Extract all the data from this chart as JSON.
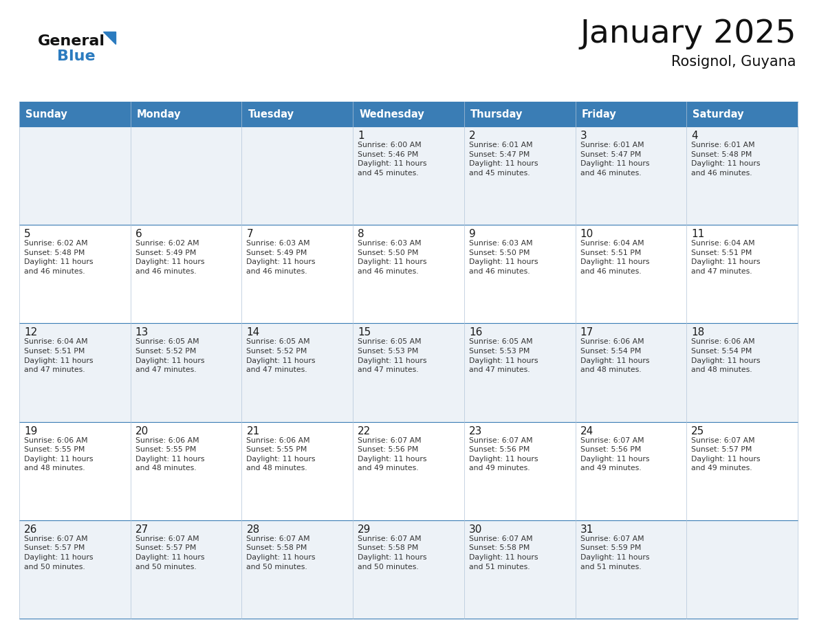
{
  "title": "January 2025",
  "subtitle": "Rosignol, Guyana",
  "header_color": "#3a7db5",
  "header_text_color": "#ffffff",
  "cell_bg_odd": "#edf2f7",
  "cell_bg_even": "#ffffff",
  "border_color": "#3a7db5",
  "cell_border_color": "#b0c4d8",
  "text_color": "#333333",
  "day_number_color": "#1a1a1a",
  "days_of_week": [
    "Sunday",
    "Monday",
    "Tuesday",
    "Wednesday",
    "Thursday",
    "Friday",
    "Saturday"
  ],
  "weeks": [
    [
      {
        "day": "",
        "info": ""
      },
      {
        "day": "",
        "info": ""
      },
      {
        "day": "",
        "info": ""
      },
      {
        "day": "1",
        "info": "Sunrise: 6:00 AM\nSunset: 5:46 PM\nDaylight: 11 hours\nand 45 minutes."
      },
      {
        "day": "2",
        "info": "Sunrise: 6:01 AM\nSunset: 5:47 PM\nDaylight: 11 hours\nand 45 minutes."
      },
      {
        "day": "3",
        "info": "Sunrise: 6:01 AM\nSunset: 5:47 PM\nDaylight: 11 hours\nand 46 minutes."
      },
      {
        "day": "4",
        "info": "Sunrise: 6:01 AM\nSunset: 5:48 PM\nDaylight: 11 hours\nand 46 minutes."
      }
    ],
    [
      {
        "day": "5",
        "info": "Sunrise: 6:02 AM\nSunset: 5:48 PM\nDaylight: 11 hours\nand 46 minutes."
      },
      {
        "day": "6",
        "info": "Sunrise: 6:02 AM\nSunset: 5:49 PM\nDaylight: 11 hours\nand 46 minutes."
      },
      {
        "day": "7",
        "info": "Sunrise: 6:03 AM\nSunset: 5:49 PM\nDaylight: 11 hours\nand 46 minutes."
      },
      {
        "day": "8",
        "info": "Sunrise: 6:03 AM\nSunset: 5:50 PM\nDaylight: 11 hours\nand 46 minutes."
      },
      {
        "day": "9",
        "info": "Sunrise: 6:03 AM\nSunset: 5:50 PM\nDaylight: 11 hours\nand 46 minutes."
      },
      {
        "day": "10",
        "info": "Sunrise: 6:04 AM\nSunset: 5:51 PM\nDaylight: 11 hours\nand 46 minutes."
      },
      {
        "day": "11",
        "info": "Sunrise: 6:04 AM\nSunset: 5:51 PM\nDaylight: 11 hours\nand 47 minutes."
      }
    ],
    [
      {
        "day": "12",
        "info": "Sunrise: 6:04 AM\nSunset: 5:51 PM\nDaylight: 11 hours\nand 47 minutes."
      },
      {
        "day": "13",
        "info": "Sunrise: 6:05 AM\nSunset: 5:52 PM\nDaylight: 11 hours\nand 47 minutes."
      },
      {
        "day": "14",
        "info": "Sunrise: 6:05 AM\nSunset: 5:52 PM\nDaylight: 11 hours\nand 47 minutes."
      },
      {
        "day": "15",
        "info": "Sunrise: 6:05 AM\nSunset: 5:53 PM\nDaylight: 11 hours\nand 47 minutes."
      },
      {
        "day": "16",
        "info": "Sunrise: 6:05 AM\nSunset: 5:53 PM\nDaylight: 11 hours\nand 47 minutes."
      },
      {
        "day": "17",
        "info": "Sunrise: 6:06 AM\nSunset: 5:54 PM\nDaylight: 11 hours\nand 48 minutes."
      },
      {
        "day": "18",
        "info": "Sunrise: 6:06 AM\nSunset: 5:54 PM\nDaylight: 11 hours\nand 48 minutes."
      }
    ],
    [
      {
        "day": "19",
        "info": "Sunrise: 6:06 AM\nSunset: 5:55 PM\nDaylight: 11 hours\nand 48 minutes."
      },
      {
        "day": "20",
        "info": "Sunrise: 6:06 AM\nSunset: 5:55 PM\nDaylight: 11 hours\nand 48 minutes."
      },
      {
        "day": "21",
        "info": "Sunrise: 6:06 AM\nSunset: 5:55 PM\nDaylight: 11 hours\nand 48 minutes."
      },
      {
        "day": "22",
        "info": "Sunrise: 6:07 AM\nSunset: 5:56 PM\nDaylight: 11 hours\nand 49 minutes."
      },
      {
        "day": "23",
        "info": "Sunrise: 6:07 AM\nSunset: 5:56 PM\nDaylight: 11 hours\nand 49 minutes."
      },
      {
        "day": "24",
        "info": "Sunrise: 6:07 AM\nSunset: 5:56 PM\nDaylight: 11 hours\nand 49 minutes."
      },
      {
        "day": "25",
        "info": "Sunrise: 6:07 AM\nSunset: 5:57 PM\nDaylight: 11 hours\nand 49 minutes."
      }
    ],
    [
      {
        "day": "26",
        "info": "Sunrise: 6:07 AM\nSunset: 5:57 PM\nDaylight: 11 hours\nand 50 minutes."
      },
      {
        "day": "27",
        "info": "Sunrise: 6:07 AM\nSunset: 5:57 PM\nDaylight: 11 hours\nand 50 minutes."
      },
      {
        "day": "28",
        "info": "Sunrise: 6:07 AM\nSunset: 5:58 PM\nDaylight: 11 hours\nand 50 minutes."
      },
      {
        "day": "29",
        "info": "Sunrise: 6:07 AM\nSunset: 5:58 PM\nDaylight: 11 hours\nand 50 minutes."
      },
      {
        "day": "30",
        "info": "Sunrise: 6:07 AM\nSunset: 5:58 PM\nDaylight: 11 hours\nand 51 minutes."
      },
      {
        "day": "31",
        "info": "Sunrise: 6:07 AM\nSunset: 5:59 PM\nDaylight: 11 hours\nand 51 minutes."
      },
      {
        "day": "",
        "info": ""
      }
    ]
  ]
}
